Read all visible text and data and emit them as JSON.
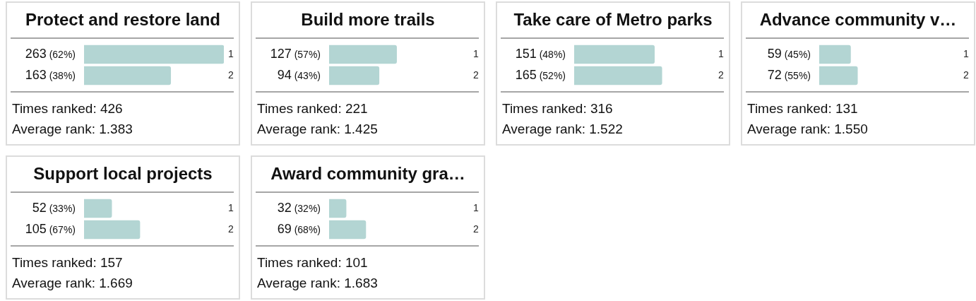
{
  "chart_data": [
    {
      "type": "bar",
      "orientation": "horizontal",
      "title": "Protect and restore land",
      "categories": [
        "1",
        "2"
      ],
      "values": [
        263,
        163
      ],
      "value_labels": [
        "263 (62%)",
        "163 (38%)"
      ],
      "color": "#b3d5d3",
      "tick_labels": "y",
      "annotations": [
        "Times ranked: 426",
        "Average rank: 1.383"
      ]
    },
    {
      "type": "bar",
      "orientation": "horizontal",
      "title": "Build more trails",
      "categories": [
        "1",
        "2"
      ],
      "values": [
        127,
        94
      ],
      "value_labels": [
        "127 (57%)",
        "94 (43%)"
      ],
      "color": "#b3d5d3",
      "tick_labels": "y",
      "annotations": [
        "Times ranked: 221",
        "Average rank: 1.425"
      ]
    },
    {
      "type": "bar",
      "orientation": "horizontal",
      "title": "Take care of Metro parks",
      "categories": [
        "1",
        "2"
      ],
      "values": [
        151,
        165
      ],
      "value_labels": [
        "151 (48%)",
        "165 (52%)"
      ],
      "color": "#b3d5d3",
      "tick_labels": "y",
      "annotations": [
        "Times ranked: 316",
        "Average rank: 1.522"
      ]
    },
    {
      "type": "bar",
      "orientation": "horizontal",
      "title": "Advance community v…",
      "categories": [
        "1",
        "2"
      ],
      "values": [
        59,
        72
      ],
      "value_labels": [
        "59 (45%)",
        "72 (55%)"
      ],
      "color": "#b3d5d3",
      "tick_labels": "y",
      "annotations": [
        "Times ranked: 131",
        "Average rank: 1.550"
      ]
    },
    {
      "type": "bar",
      "orientation": "horizontal",
      "title": "Support local projects",
      "categories": [
        "1",
        "2"
      ],
      "values": [
        52,
        105
      ],
      "value_labels": [
        "52 (33%)",
        "105 (67%)"
      ],
      "color": "#b3d5d3",
      "tick_labels": "y",
      "annotations": [
        "Times ranked: 157",
        "Average rank: 1.669"
      ]
    },
    {
      "type": "bar",
      "orientation": "horizontal",
      "title": "Award community gra…",
      "categories": [
        "1",
        "2"
      ],
      "values": [
        32,
        69
      ],
      "value_labels": [
        "32 (32%)",
        "69 (68%)"
      ],
      "color": "#b3d5d3",
      "tick_labels": "y",
      "annotations": [
        "Times ranked: 101",
        "Average rank: 1.683"
      ]
    }
  ]
}
